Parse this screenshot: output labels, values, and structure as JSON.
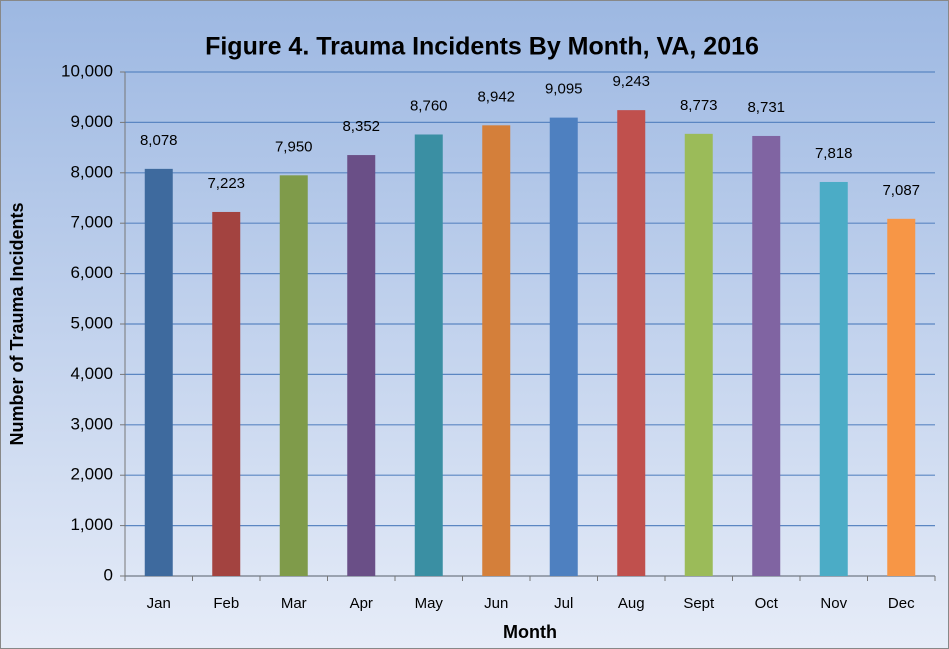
{
  "chart_data": {
    "type": "bar",
    "title": "Figure 4. Trauma Incidents By Month, VA, 2016",
    "x_label": "Month",
    "y_label": "Number of Trauma Incidents",
    "categories": [
      "Jan",
      "Feb",
      "Mar",
      "Apr",
      "May",
      "Jun",
      "Jul",
      "Aug",
      "Sept",
      "Oct",
      "Nov",
      "Dec"
    ],
    "values": [
      8078,
      7223,
      7950,
      8352,
      8760,
      8942,
      9095,
      9243,
      8773,
      8731,
      7818,
      7087
    ],
    "value_labels": [
      "8,078",
      "7,223",
      "7,950",
      "8,352",
      "8,760",
      "8,942",
      "9,095",
      "9,243",
      "8,773",
      "8,731",
      "7,818",
      "7,087"
    ],
    "colors": [
      "#3e6a9e",
      "#a34340",
      "#7f9b4a",
      "#6a4f87",
      "#3a8fa3",
      "#d47f3a",
      "#4e80c0",
      "#c0504d",
      "#9bbb59",
      "#8064a2",
      "#4bacc6",
      "#f79646"
    ],
    "ylim": [
      0,
      10000
    ],
    "yticks": [
      0,
      {
        "value": 1000,
        "label": "1,000"
      },
      {
        "value": 2000,
        "label": "2,000"
      },
      {
        "value": 3000,
        "label": "3,000"
      },
      {
        "value": 4000,
        "label": "4,000"
      },
      {
        "value": 5000,
        "label": "5,000"
      },
      {
        "value": 6000,
        "label": "6,000"
      },
      {
        "value": 7000,
        "label": "7,000"
      },
      {
        "value": 8000,
        "label": "8,000"
      },
      {
        "value": 9000,
        "label": "9,000"
      },
      {
        "value": 10000,
        "label": "10,000"
      }
    ],
    "grid": true
  }
}
